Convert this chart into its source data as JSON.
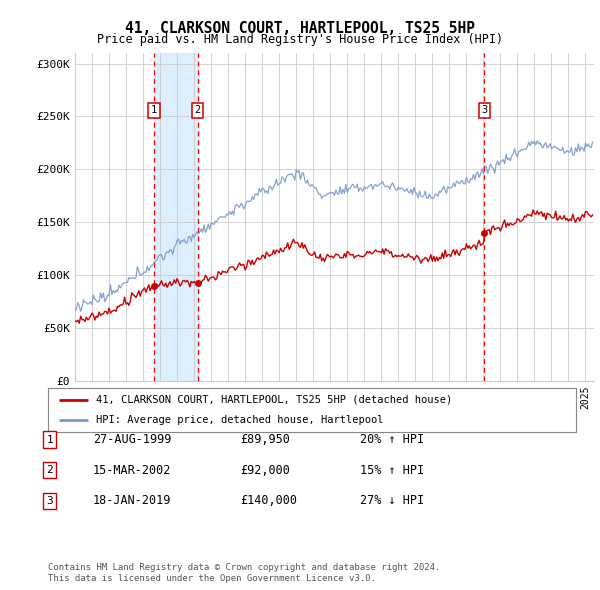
{
  "title1": "41, CLARKSON COURT, HARTLEPOOL, TS25 5HP",
  "title2": "Price paid vs. HM Land Registry's House Price Index (HPI)",
  "ylabel_ticks": [
    "£0",
    "£50K",
    "£100K",
    "£150K",
    "£200K",
    "£250K",
    "£300K"
  ],
  "ytick_vals": [
    0,
    50000,
    100000,
    150000,
    200000,
    250000,
    300000
  ],
  "ylim": [
    0,
    310000
  ],
  "xlim_start": 1995.0,
  "xlim_end": 2025.5,
  "sale_dates": [
    1999.65,
    2002.21,
    2019.05
  ],
  "sale_prices": [
    89950,
    92000,
    140000
  ],
  "sale_labels": [
    "1",
    "2",
    "3"
  ],
  "legend_line1": "41, CLARKSON COURT, HARTLEPOOL, TS25 5HP (detached house)",
  "legend_line2": "HPI: Average price, detached house, Hartlepool",
  "table_rows": [
    [
      "1",
      "27-AUG-1999",
      "£89,950",
      "20% ↑ HPI"
    ],
    [
      "2",
      "15-MAR-2002",
      "£92,000",
      "15% ↑ HPI"
    ],
    [
      "3",
      "18-JAN-2019",
      "£140,000",
      "27% ↓ HPI"
    ]
  ],
  "footnote1": "Contains HM Land Registry data © Crown copyright and database right 2024.",
  "footnote2": "This data is licensed under the Open Government Licence v3.0.",
  "hpi_color": "#7799cc",
  "price_color": "#cc0000",
  "highlight_color": "#ddeeff",
  "grid_color": "#cccccc",
  "bg_color": "#ffffff"
}
